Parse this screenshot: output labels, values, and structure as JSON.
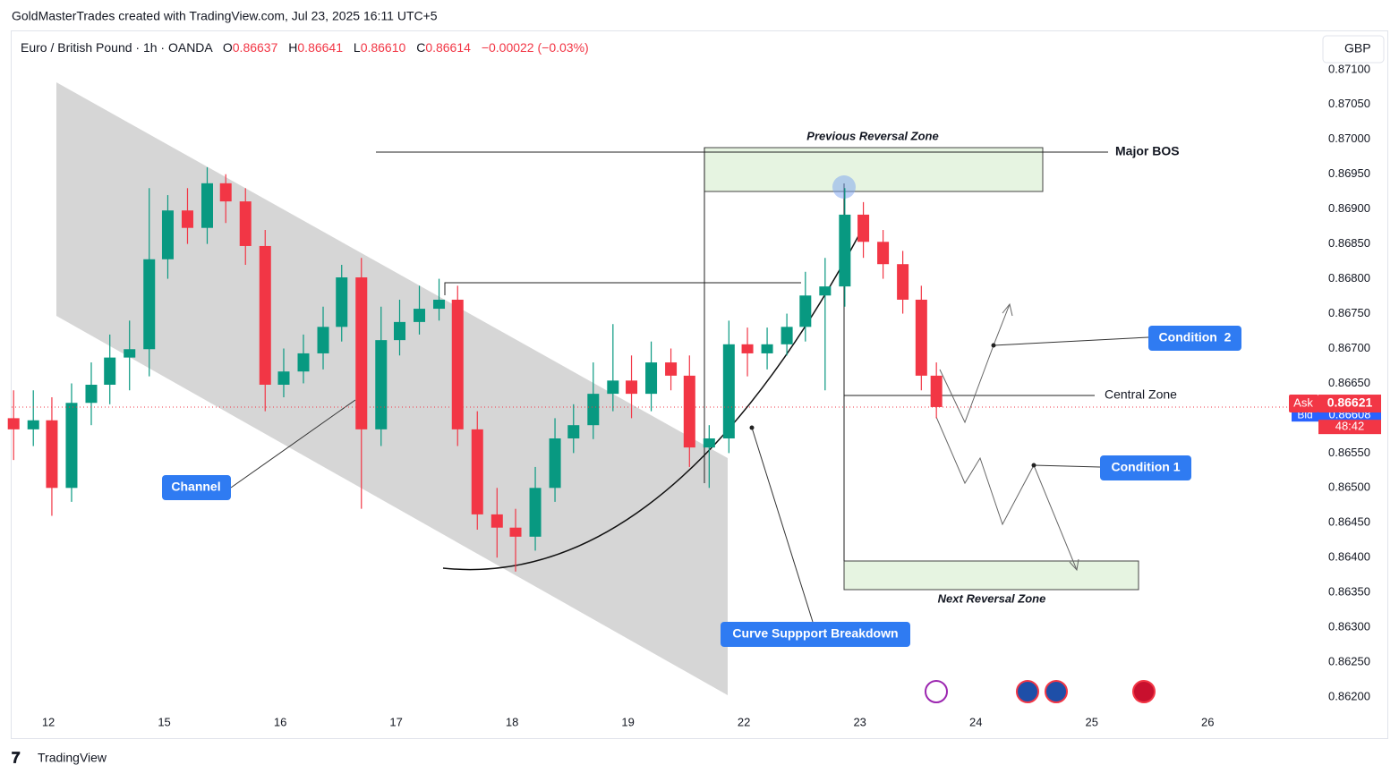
{
  "header": {
    "credit": "GoldMasterTrades created with TradingView.com, Jul 23, 2025 16:11 UTC+5",
    "symbol": "Euro / British Pound · 1h · OANDA",
    "open_label": "O",
    "open": "0.86637",
    "high_label": "H",
    "high": "0.86641",
    "low_label": "L",
    "low": "0.86610",
    "close_label": "C",
    "close": "0.86614",
    "change": "−0.00022 (−0.03%)",
    "currency": "GBP",
    "brand": "TradingView"
  },
  "annotations": {
    "previous_reversal_zone": "Previous Reversal Zone",
    "major_bos": "Major BOS",
    "condition_2": "Condition  2",
    "central_zone": "Central Zone",
    "condition_1": "Condition 1",
    "next_reversal_zone": "Next Reversal Zone",
    "curve_breakdown": "Curve Suppport Breakdown",
    "channel": "Channel"
  },
  "chart_data": {
    "type": "candlestick",
    "up_color": "#089981",
    "down_color": "#f23645",
    "x": [
      -0.3,
      -0.13,
      0.03,
      0.2,
      0.37,
      0.53,
      0.7,
      0.87,
      1.03,
      1.2,
      1.37,
      1.53,
      1.7,
      1.87,
      2.03,
      2.2,
      2.37,
      2.53,
      2.7,
      2.87,
      3.03,
      3.2,
      3.37,
      3.53,
      3.7,
      3.87,
      4.03,
      4.2,
      4.37,
      4.53,
      4.7,
      4.87,
      5.03,
      5.2,
      5.37,
      5.53,
      5.7,
      5.87,
      6.03,
      6.2,
      6.37,
      6.53,
      6.7,
      6.87,
      7.03,
      7.2,
      7.37,
      7.53,
      7.66
    ],
    "open": [
      0.866,
      0.86584,
      0.86597,
      0.865,
      0.86622,
      0.86648,
      0.86687,
      0.86699,
      0.86828,
      0.86898,
      0.86873,
      0.86937,
      0.86911,
      0.86847,
      0.86648,
      0.86667,
      0.86693,
      0.86731,
      0.86802,
      0.86584,
      0.86712,
      0.86738,
      0.86757,
      0.8677,
      0.86584,
      0.86462,
      0.86443,
      0.8643,
      0.865,
      0.86571,
      0.8659,
      0.86635,
      0.86654,
      0.86635,
      0.8668,
      0.86661,
      0.86558,
      0.86571,
      0.86706,
      0.86693,
      0.86706,
      0.86731,
      0.86776,
      0.86789,
      0.86892,
      0.86853,
      0.86821,
      0.8677,
      0.86661
    ],
    "high": [
      0.8664,
      0.8664,
      0.8663,
      0.8665,
      0.8668,
      0.8672,
      0.8674,
      0.8693,
      0.8692,
      0.8693,
      0.8696,
      0.8695,
      0.8693,
      0.8687,
      0.867,
      0.8672,
      0.8676,
      0.8682,
      0.8683,
      0.8676,
      0.8677,
      0.8679,
      0.868,
      0.8679,
      0.8661,
      0.865,
      0.8647,
      0.8653,
      0.866,
      0.8662,
      0.8668,
      0.86735,
      0.8669,
      0.8671,
      0.867,
      0.8669,
      0.8659,
      0.8674,
      0.8673,
      0.8673,
      0.8675,
      0.8681,
      0.8683,
      0.8693,
      0.8691,
      0.8687,
      0.8684,
      0.8679,
      0.8668
    ],
    "low": [
      0.8654,
      0.8656,
      0.8646,
      0.8648,
      0.8659,
      0.8662,
      0.8664,
      0.8666,
      0.868,
      0.8685,
      0.8685,
      0.8688,
      0.8682,
      0.8661,
      0.8663,
      0.8665,
      0.8667,
      0.8671,
      0.8647,
      0.8656,
      0.8669,
      0.8672,
      0.8674,
      0.8656,
      0.8644,
      0.864,
      0.8638,
      0.8641,
      0.8648,
      0.8655,
      0.8657,
      0.8661,
      0.866,
      0.8661,
      0.8664,
      0.8653,
      0.865,
      0.8655,
      0.8666,
      0.8667,
      0.8669,
      0.8671,
      0.8664,
      0.8676,
      0.8683,
      0.868,
      0.8675,
      0.8664,
      0.866
    ],
    "close": [
      0.86584,
      0.86597,
      0.865,
      0.86622,
      0.86648,
      0.86687,
      0.86699,
      0.86828,
      0.86898,
      0.86873,
      0.86937,
      0.86911,
      0.86847,
      0.86648,
      0.86667,
      0.86693,
      0.86731,
      0.86802,
      0.86584,
      0.86712,
      0.86738,
      0.86757,
      0.8677,
      0.86584,
      0.86462,
      0.86443,
      0.8643,
      0.865,
      0.86571,
      0.8659,
      0.86635,
      0.86654,
      0.86635,
      0.8668,
      0.86661,
      0.86558,
      0.86571,
      0.86706,
      0.86693,
      0.86706,
      0.86731,
      0.86776,
      0.86789,
      0.86892,
      0.86853,
      0.86821,
      0.8677,
      0.86661,
      0.86616
    ],
    "xlim": [
      -0.317,
      11.55
    ],
    "ylim": [
      0.86141,
      0.87155
    ],
    "xticks": [
      {
        "value": 0,
        "label": "12"
      },
      {
        "value": 1,
        "label": "15"
      },
      {
        "value": 2,
        "label": "16"
      },
      {
        "value": 3,
        "label": "17"
      },
      {
        "value": 4,
        "label": "18"
      },
      {
        "value": 5,
        "label": "19"
      },
      {
        "value": 6,
        "label": "22"
      },
      {
        "value": 7,
        "label": "23"
      },
      {
        "value": 8,
        "label": "24"
      },
      {
        "value": 9,
        "label": "25"
      },
      {
        "value": 10,
        "label": "26"
      }
    ],
    "yticks": [
      {
        "value": 0.862,
        "label": "0.86200"
      },
      {
        "value": 0.8625,
        "label": "0.86250"
      },
      {
        "value": 0.863,
        "label": "0.86300"
      },
      {
        "value": 0.8635,
        "label": "0.86350"
      },
      {
        "value": 0.864,
        "label": "0.86400"
      },
      {
        "value": 0.8645,
        "label": "0.86450"
      },
      {
        "value": 0.865,
        "label": "0.86500"
      },
      {
        "value": 0.8655,
        "label": "0.86550"
      },
      {
        "value": 0.866,
        "label": "0.86600"
      },
      {
        "value": 0.8665,
        "label": "0.86650"
      },
      {
        "value": 0.867,
        "label": "0.86700"
      },
      {
        "value": 0.8675,
        "label": "0.86750"
      },
      {
        "value": 0.868,
        "label": "0.86800"
      },
      {
        "value": 0.8685,
        "label": "0.86850"
      },
      {
        "value": 0.869,
        "label": "0.86900"
      },
      {
        "value": 0.8695,
        "label": "0.86950"
      },
      {
        "value": 0.87,
        "label": "0.87000"
      },
      {
        "value": 0.8705,
        "label": "0.87050"
      },
      {
        "value": 0.871,
        "label": "0.87100"
      }
    ],
    "ask_label": "Ask",
    "ask": 0.86621,
    "bid_label": "Bid",
    "bid": 0.86608,
    "countdown": "48:42"
  }
}
